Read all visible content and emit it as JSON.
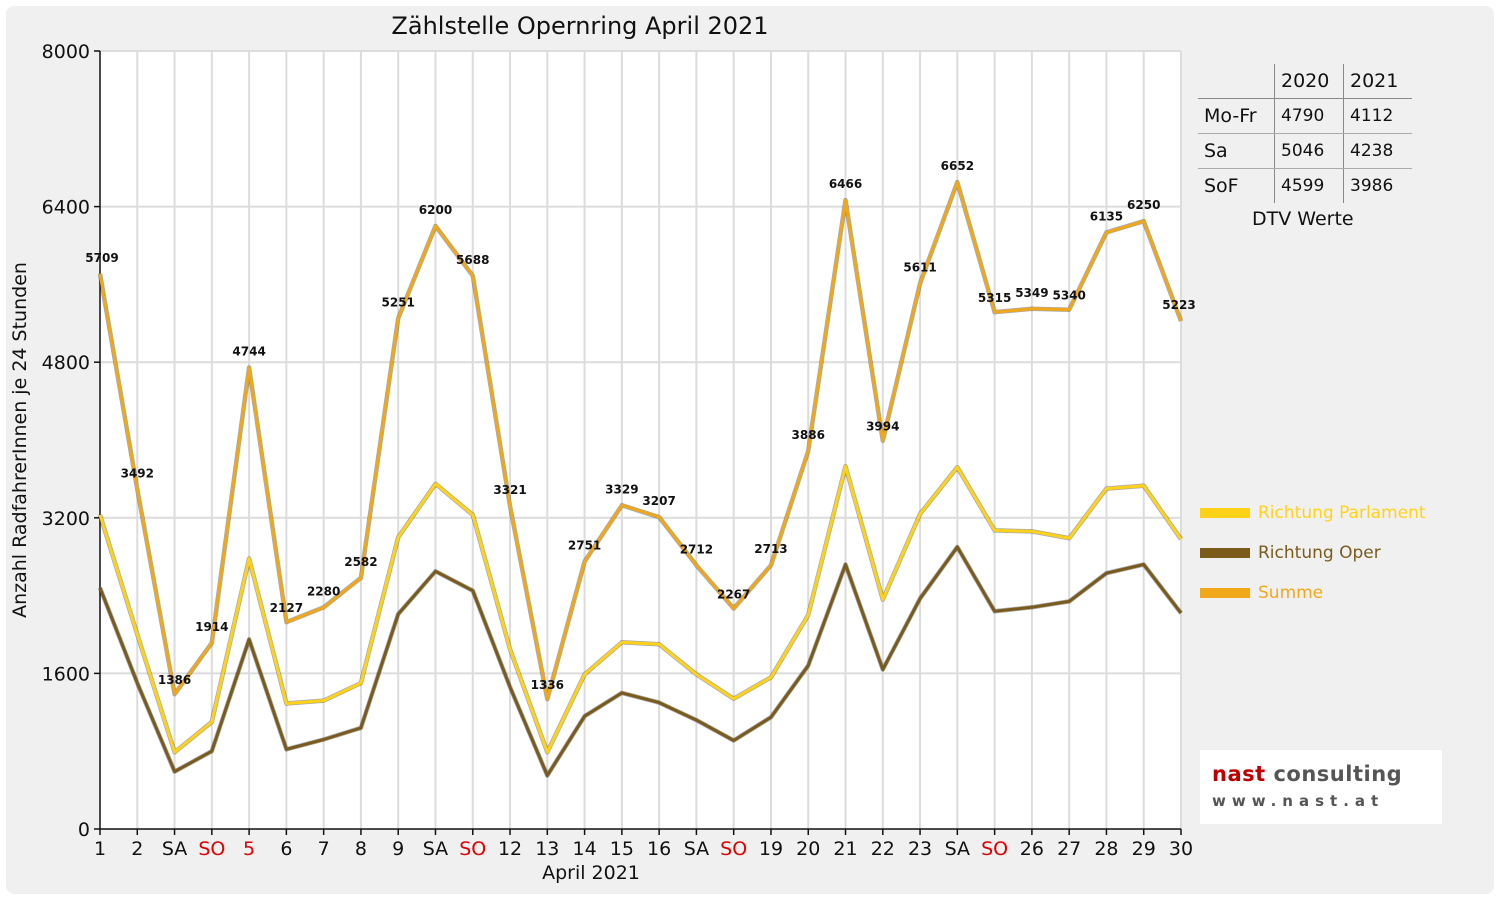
{
  "title": "Zählstelle Opernring April 2021",
  "ylabel": "Anzahl RadfahrerInnen je 24 Stunden",
  "xlabel": "April 2021",
  "colors": {
    "parlament": "#FFD21A",
    "oper": "#7A5B1C",
    "summe": "#F0A81A",
    "weekend": "#e00000"
  },
  "chart_data": {
    "type": "line",
    "title": "Zählstelle Opernring April 2021",
    "xlabel": "April 2021",
    "ylabel": "Anzahl RadfahrerInnen je 24 Stunden",
    "ylim": [
      0,
      8000
    ],
    "yticks": [
      0,
      1600,
      3200,
      4800,
      6400,
      8000
    ],
    "grid": true,
    "legend_position": "right",
    "x_labels": [
      "1",
      "2",
      "SA",
      "SO",
      "5",
      "6",
      "7",
      "8",
      "9",
      "SA",
      "SO",
      "12",
      "13",
      "14",
      "15",
      "16",
      "SA",
      "SO",
      "19",
      "20",
      "21",
      "22",
      "23",
      "SA",
      "SO",
      "26",
      "27",
      "28",
      "29",
      "30"
    ],
    "red_labels": [
      3,
      4,
      10,
      17,
      24
    ],
    "series": [
      {
        "name": "Richtung Parlament",
        "color": "#FFD21A",
        "values": [
          3230,
          2000,
          790,
          1100,
          2780,
          1290,
          1320,
          1500,
          3000,
          3550,
          3230,
          1850,
          790,
          1590,
          1920,
          1900,
          1590,
          1340,
          1560,
          2200,
          3730,
          2360,
          3240,
          3720,
          3070,
          3060,
          2990,
          3500,
          3530,
          2980
        ]
      },
      {
        "name": "Richtung Oper",
        "color": "#7A5B1C",
        "values": [
          2480,
          1500,
          590,
          800,
          1950,
          820,
          920,
          1040,
          2210,
          2650,
          2450,
          1460,
          550,
          1160,
          1400,
          1300,
          1120,
          910,
          1150,
          1680,
          2720,
          1640,
          2370,
          2900,
          2240,
          2280,
          2340,
          2630,
          2720,
          2220
        ]
      },
      {
        "name": "Summe",
        "color": "#F0A81A",
        "values": [
          5709,
          3492,
          1386,
          1914,
          4744,
          2127,
          2280,
          2582,
          5251,
          6200,
          5688,
          3321,
          1336,
          2751,
          3329,
          3207,
          2712,
          2267,
          2713,
          3886,
          6466,
          3994,
          5611,
          6652,
          5315,
          5349,
          5340,
          6135,
          6250,
          5223
        ],
        "data_labels": [
          "5709",
          "3492",
          "1386",
          "1914",
          "4744",
          "2127",
          "2280",
          "2582",
          "5251",
          "6200",
          "5688",
          "3321",
          "1336",
          "2751",
          "3329",
          "3207",
          "2712",
          "2267",
          "2713",
          "3886",
          "6466",
          "3994",
          "5611",
          "6652",
          "5315",
          "5349",
          "5340",
          "6135",
          "6250",
          "5223"
        ]
      }
    ]
  },
  "dtv_table": {
    "headers": [
      "",
      "2020",
      "2021"
    ],
    "rows": [
      {
        "label": "Mo-Fr",
        "v2020": "4790",
        "v2021": "4112"
      },
      {
        "label": "Sa",
        "v2020": "5046",
        "v2021": "4238"
      },
      {
        "label": "SoF",
        "v2020": "4599",
        "v2021": "3986"
      }
    ],
    "caption": "DTV Werte"
  },
  "legend": [
    {
      "label": "Richtung Parlament",
      "color": "#FFD21A"
    },
    {
      "label": "Richtung Oper",
      "color": "#7A5B1C"
    },
    {
      "label": "Summe",
      "color": "#F0A81A"
    }
  ],
  "logo": {
    "name_a": "nast",
    "name_b": "consulting",
    "url": "www.nast.at"
  }
}
